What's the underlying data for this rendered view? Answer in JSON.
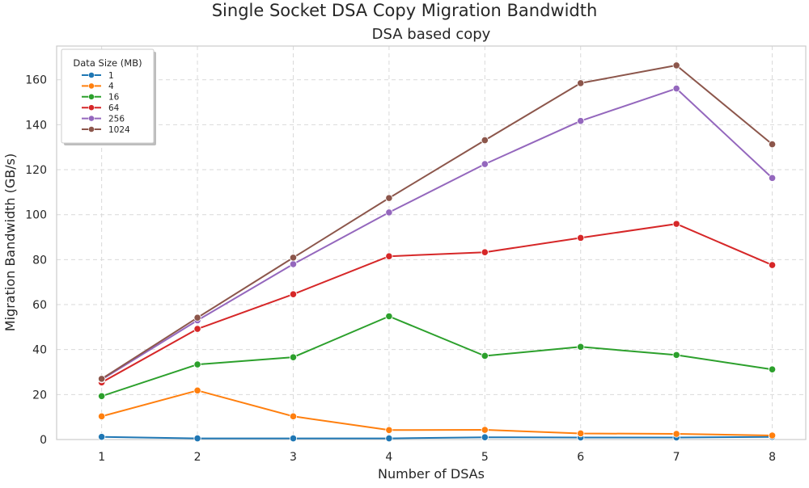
{
  "chart_data": {
    "type": "line",
    "title": "Single Socket DSA Copy Migration Bandwidth",
    "subtitle": "DSA based copy",
    "xlabel": "Number of DSAs",
    "ylabel": "Migration Bandwidth (GB/s)",
    "x": [
      1,
      2,
      3,
      4,
      5,
      6,
      7,
      8
    ],
    "xlim": [
      0.53,
      8.35
    ],
    "ylim": [
      0,
      175
    ],
    "yticks": [
      0,
      20,
      40,
      60,
      80,
      100,
      120,
      140,
      160
    ],
    "grid": true,
    "legend": {
      "title": "Data Size (MB)",
      "placement": "top-left"
    },
    "series": [
      {
        "name": "1",
        "color": "#1f77b4",
        "values": [
          1.2,
          0.5,
          0.5,
          0.5,
          1.0,
          0.9,
          0.9,
          1.2
        ]
      },
      {
        "name": "4",
        "color": "#ff7f0e",
        "values": [
          10.3,
          21.8,
          10.3,
          4.2,
          4.3,
          2.7,
          2.5,
          1.8
        ]
      },
      {
        "name": "16",
        "color": "#2ca02c",
        "values": [
          19.3,
          33.4,
          36.6,
          54.8,
          37.2,
          41.2,
          37.6,
          31.2
        ]
      },
      {
        "name": "64",
        "color": "#d62728",
        "values": [
          25.4,
          49.2,
          64.6,
          81.5,
          83.3,
          89.7,
          95.9,
          77.6
        ]
      },
      {
        "name": "256",
        "color": "#9467bd",
        "values": [
          26.7,
          53.0,
          78.0,
          101.0,
          122.5,
          141.7,
          156.1,
          116.3
        ]
      },
      {
        "name": "1024",
        "color": "#8c564b",
        "values": [
          27.0,
          54.2,
          80.9,
          107.4,
          133.1,
          158.5,
          166.4,
          131.3
        ]
      }
    ]
  }
}
